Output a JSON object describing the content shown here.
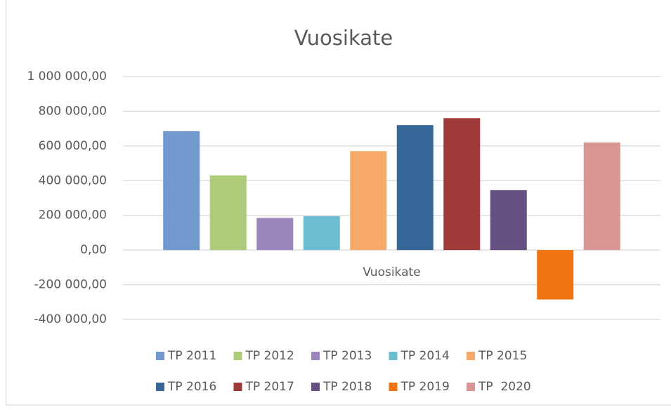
{
  "chart_data": {
    "type": "bar",
    "title": "Vuosikate",
    "categories": [
      "Vuosikate"
    ],
    "series": [
      {
        "name": "TP 2011",
        "color": "#7199cf",
        "values": [
          685000
        ]
      },
      {
        "name": "TP 2012",
        "color": "#aecb79",
        "values": [
          430000
        ]
      },
      {
        "name": "TP 2013",
        "color": "#9b85bb",
        "values": [
          185000
        ]
      },
      {
        "name": "TP 2014",
        "color": "#6bbdd2",
        "values": [
          195000
        ]
      },
      {
        "name": "TP 2015",
        "color": "#f7a96a",
        "values": [
          570000
        ]
      },
      {
        "name": "TP 2016",
        "color": "#376699",
        "values": [
          720000
        ]
      },
      {
        "name": "TP 2017",
        "color": "#9e3a38",
        "values": [
          760000
        ]
      },
      {
        "name": "TP 2018",
        "color": "#664f81",
        "values": [
          345000
        ]
      },
      {
        "name": "TP 2019",
        "color": "#f07512",
        "values": [
          -285000
        ]
      },
      {
        "name": "TP  2020",
        "color": "#d99594",
        "values": [
          620000
        ]
      }
    ],
    "ylim": [
      -400000,
      1000000
    ],
    "yticks": [
      {
        "value": -400000,
        "label": "-400 000,00"
      },
      {
        "value": -200000,
        "label": "-200 000,00"
      },
      {
        "value": 0,
        "label": "0,00"
      },
      {
        "value": 200000,
        "label": "200 000,00"
      },
      {
        "value": 400000,
        "label": "400 000,00"
      },
      {
        "value": 600000,
        "label": "600 000,00"
      },
      {
        "value": 800000,
        "label": "800 000,00"
      },
      {
        "value": 1000000,
        "label": "1 000 000,00"
      }
    ],
    "grid": true,
    "legend": "bottom"
  }
}
